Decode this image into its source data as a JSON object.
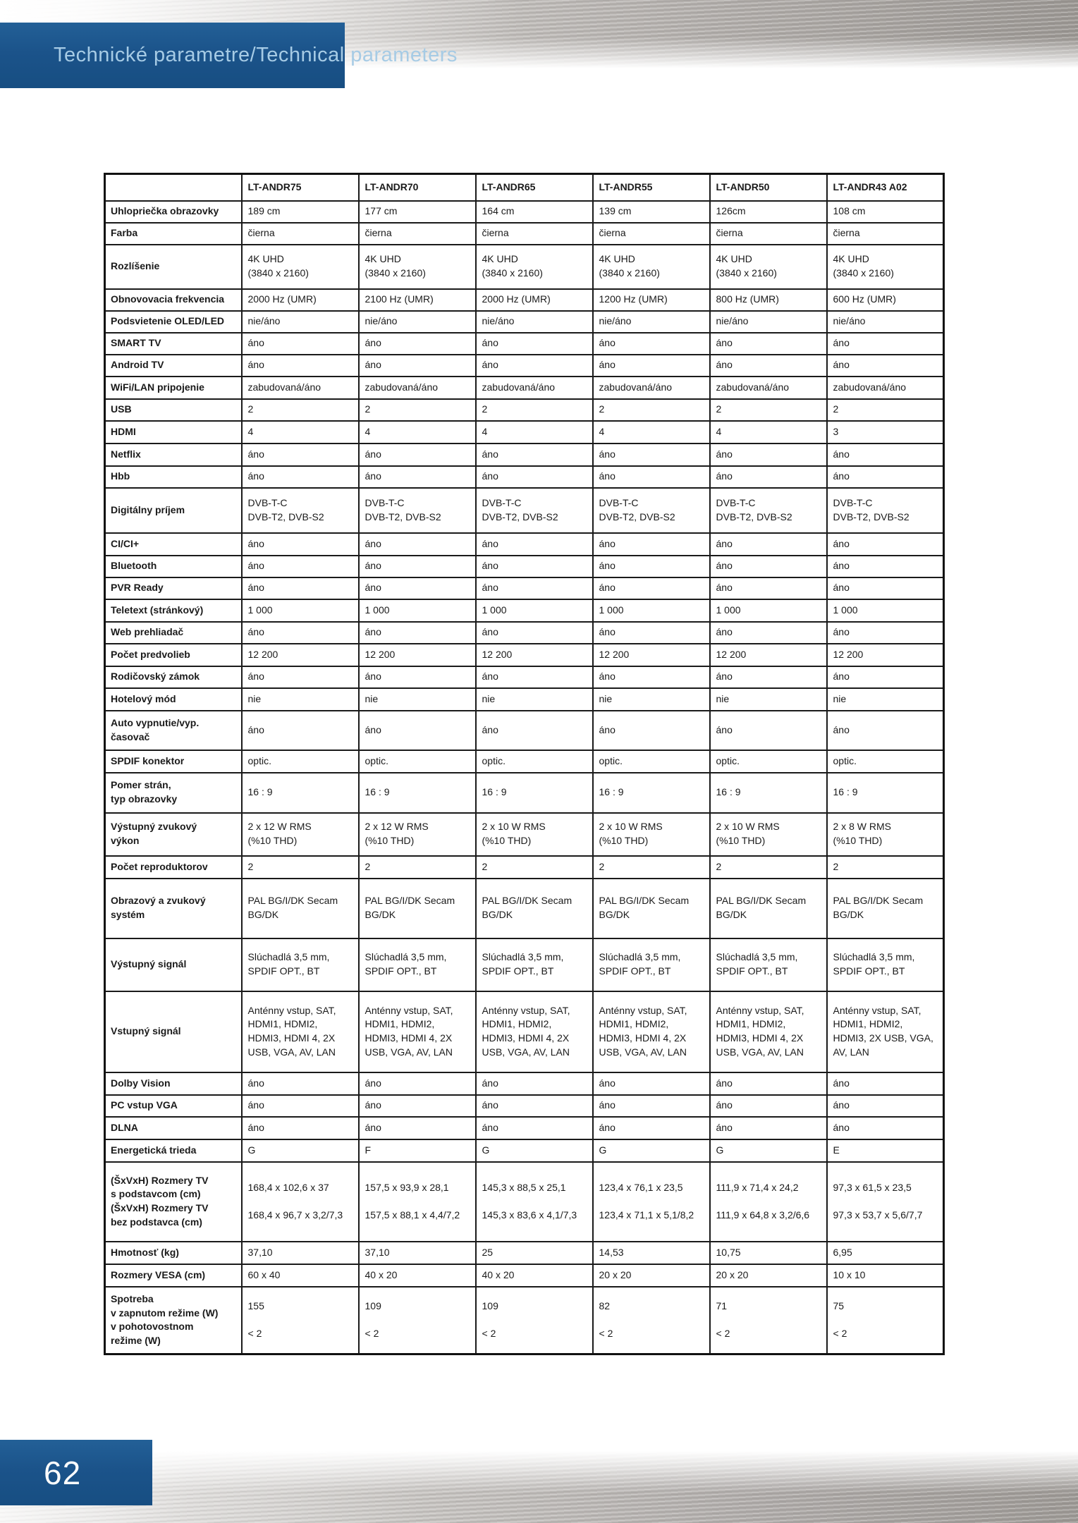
{
  "page": {
    "title": "Technické parametre/Technical parameters",
    "number": "62"
  },
  "colors": {
    "brand_blue": "#1b538a",
    "title_text_blue": "#a6cbe5"
  },
  "table": {
    "models": [
      "LT-ANDR75",
      "LT-ANDR70",
      "LT-ANDR65",
      "LT-ANDR55",
      "LT-ANDR50",
      "LT-ANDR43 A02"
    ],
    "rows": [
      {
        "label": "Uhlopriečka obrazovky",
        "values": [
          "189 cm",
          "177 cm",
          "164 cm",
          "139 cm",
          "126cm",
          "108 cm"
        ]
      },
      {
        "label": "Farba",
        "values": [
          "čierna",
          "čierna",
          "čierna",
          "čierna",
          "čierna",
          "čierna"
        ]
      },
      {
        "label": "Rozlíšenie",
        "values": [
          "4K UHD\n(3840 x 2160)",
          "4K UHD\n(3840 x 2160)",
          "4K UHD\n(3840 x 2160)",
          "4K UHD\n(3840 x 2160)",
          "4K UHD\n(3840 x 2160)",
          "4K UHD\n(3840 x 2160)"
        ]
      },
      {
        "label": "Obnovovacia frekvencia",
        "values": [
          "2000 Hz (UMR)",
          "2100 Hz (UMR)",
          "2000 Hz (UMR)",
          "1200 Hz (UMR)",
          "800 Hz (UMR)",
          "600 Hz (UMR)"
        ]
      },
      {
        "label": "Podsvietenie OLED/LED",
        "values": [
          "nie/áno",
          "nie/áno",
          "nie/áno",
          "nie/áno",
          "nie/áno",
          "nie/áno"
        ]
      },
      {
        "label": "SMART TV",
        "values": [
          "áno",
          "áno",
          "áno",
          "áno",
          "áno",
          "áno"
        ]
      },
      {
        "label": "Android TV",
        "values": [
          "áno",
          "áno",
          "áno",
          "áno",
          "áno",
          "áno"
        ]
      },
      {
        "label": "WiFi/LAN pripojenie",
        "values": [
          "zabudovaná/áno",
          "zabudovaná/áno",
          "zabudovaná/áno",
          "zabudovaná/áno",
          "zabudovaná/áno",
          "zabudovaná/áno"
        ]
      },
      {
        "label": "USB",
        "values": [
          "2",
          "2",
          "2",
          "2",
          "2",
          "2"
        ]
      },
      {
        "label": "HDMI",
        "values": [
          "4",
          "4",
          "4",
          "4",
          "4",
          "3"
        ]
      },
      {
        "label": "Netflix",
        "values": [
          "áno",
          "áno",
          "áno",
          "áno",
          "áno",
          "áno"
        ]
      },
      {
        "label": "Hbb",
        "values": [
          "áno",
          "áno",
          "áno",
          "áno",
          "áno",
          "áno"
        ]
      },
      {
        "label": "Digitálny príjem",
        "values": [
          "DVB-T-C\nDVB-T2, DVB-S2",
          "DVB-T-C\nDVB-T2, DVB-S2",
          "DVB-T-C\nDVB-T2, DVB-S2",
          "DVB-T-C\nDVB-T2, DVB-S2",
          "DVB-T-C\nDVB-T2, DVB-S2",
          "DVB-T-C\nDVB-T2, DVB-S2"
        ]
      },
      {
        "label": "CI/CI+",
        "values": [
          "áno",
          "áno",
          "áno",
          "áno",
          "áno",
          "áno"
        ]
      },
      {
        "label": "Bluetooth",
        "values": [
          "áno",
          "áno",
          "áno",
          "áno",
          "áno",
          "áno"
        ]
      },
      {
        "label": "PVR Ready",
        "values": [
          "áno",
          "áno",
          "áno",
          "áno",
          "áno",
          "áno"
        ]
      },
      {
        "label": "Teletext (stránkový)",
        "values": [
          "1 000",
          "1 000",
          "1 000",
          "1 000",
          "1 000",
          "1 000"
        ]
      },
      {
        "label": "Web prehliadač",
        "values": [
          "áno",
          "áno",
          "áno",
          "áno",
          "áno",
          "áno"
        ]
      },
      {
        "label": "Počet predvolieb",
        "values": [
          "12 200",
          "12 200",
          "12 200",
          "12 200",
          "12 200",
          "12 200"
        ]
      },
      {
        "label": "Rodičovský zámok",
        "values": [
          "áno",
          "áno",
          "áno",
          "áno",
          "áno",
          "áno"
        ]
      },
      {
        "label": "Hotelový mód",
        "values": [
          "nie",
          "nie",
          "nie",
          "nie",
          "nie",
          "nie"
        ]
      },
      {
        "label": "Auto vypnutie/vyp.\nčasovač",
        "values": [
          "áno",
          "áno",
          "áno",
          "áno",
          "áno",
          "áno"
        ]
      },
      {
        "label": "SPDIF konektor",
        "values": [
          "optic.",
          "optic.",
          "optic.",
          "optic.",
          "optic.",
          "optic."
        ]
      },
      {
        "label": "Pomer strán,\ntyp obrazovky",
        "values": [
          "16 : 9",
          "16 : 9",
          "16 : 9",
          "16 : 9",
          "16 : 9",
          "16 : 9"
        ]
      },
      {
        "label": "Výstupný zvukový\nvýkon",
        "values": [
          "2 x 12 W RMS\n(%10 THD)",
          "2 x 12 W RMS\n(%10 THD)",
          "2 x 10 W RMS\n(%10 THD)",
          "2 x 10 W RMS\n(%10 THD)",
          "2 x 10 W RMS\n(%10 THD)",
          "2 x 8 W RMS\n(%10 THD)"
        ]
      },
      {
        "label": "Počet reproduktorov",
        "values": [
          "2",
          "2",
          "2",
          "2",
          "2",
          "2"
        ]
      },
      {
        "label": "Obrazový a zvukový\nsystém",
        "values": [
          "PAL BG/I/DK Secam\nBG/DK",
          "PAL BG/I/DK Secam\nBG/DK",
          "PAL BG/I/DK Secam\nBG/DK",
          "PAL BG/I/DK Secam\nBG/DK",
          "PAL BG/I/DK Secam\nBG/DK",
          "PAL BG/I/DK Secam\nBG/DK"
        ]
      },
      {
        "label": "Výstupný signál",
        "values": [
          "Slúchadlá 3,5 mm,\nSPDIF OPT., BT",
          "Slúchadlá 3,5 mm,\nSPDIF OPT., BT",
          "Slúchadlá 3,5 mm,\nSPDIF OPT., BT",
          "Slúchadlá 3,5 mm,\nSPDIF OPT., BT",
          "Slúchadlá 3,5 mm,\nSPDIF OPT., BT",
          "Slúchadlá 3,5 mm,\nSPDIF OPT., BT"
        ]
      },
      {
        "label": "Vstupný signál",
        "values": [
          "Anténny vstup, SAT,\nHDMI1, HDMI2,\nHDMI3, HDMI 4, 2X\nUSB, VGA, AV, LAN",
          "Anténny vstup, SAT,\nHDMI1, HDMI2,\nHDMI3, HDMI 4, 2X\nUSB, VGA, AV, LAN",
          "Anténny vstup, SAT,\nHDMI1, HDMI2,\nHDMI3, HDMI 4, 2X\nUSB, VGA, AV, LAN",
          "Anténny vstup, SAT,\nHDMI1, HDMI2,\nHDMI3, HDMI 4, 2X\nUSB, VGA, AV, LAN",
          "Anténny vstup, SAT,\nHDMI1, HDMI2,\nHDMI3, HDMI 4, 2X\nUSB, VGA, AV, LAN",
          "Anténny vstup, SAT,\nHDMI1, HDMI2,\nHDMI3, 2X USB, VGA,\nAV, LAN"
        ]
      },
      {
        "label": "Dolby Vision",
        "values": [
          "áno",
          "áno",
          "áno",
          "áno",
          "áno",
          "áno"
        ]
      },
      {
        "label": "PC vstup VGA",
        "values": [
          "áno",
          "áno",
          "áno",
          "áno",
          "áno",
          "áno"
        ]
      },
      {
        "label": "DLNA",
        "values": [
          "áno",
          "áno",
          "áno",
          "áno",
          "áno",
          "áno"
        ]
      },
      {
        "label": "Energetická trieda",
        "values": [
          "G",
          "F",
          "G",
          "G",
          "G",
          "E"
        ]
      },
      {
        "label": "(ŠxVxH) Rozmery TV\ns podstavcom (cm)\n(ŠxVxH) Rozmery TV\nbez podstavca (cm)",
        "values": [
          "168,4 x 102,6 x 37\n\n168,4 x 96,7 x 3,2/7,3",
          "157,5 x 93,9 x 28,1\n\n157,5 x 88,1 x 4,4/7,2",
          "145,3 x 88,5 x 25,1\n\n145,3 x 83,6 x 4,1/7,3",
          "123,4 x 76,1 x 23,5\n\n123,4 x 71,1 x 5,1/8,2",
          "111,9 x 71,4 x 24,2\n\n111,9 x 64,8 x 3,2/6,6",
          "97,3 x 61,5 x 23,5\n\n97,3 x 53,7 x 5,6/7,7"
        ]
      },
      {
        "label": "Hmotnosť (kg)",
        "values": [
          "37,10",
          "37,10",
          "25",
          "14,53",
          "10,75",
          "6,95"
        ]
      },
      {
        "label": "Rozmery VESA (cm)",
        "values": [
          "60 x 40",
          "40 x 20",
          "40 x 20",
          "20 x 20",
          "20 x 20",
          "10 x 10"
        ]
      },
      {
        "label": "Spotreba\nv zapnutom režime (W)\nv pohotovostnom\nrežime (W)",
        "values": [
          "155\n\n< 2",
          "109\n\n< 2",
          "109\n\n< 2",
          "82\n\n< 2",
          "71\n\n< 2",
          "75\n\n< 2"
        ]
      }
    ]
  }
}
